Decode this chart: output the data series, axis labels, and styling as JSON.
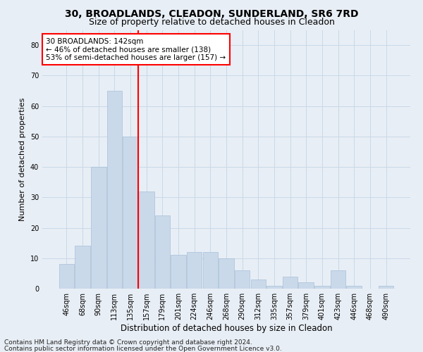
{
  "title1": "30, BROADLANDS, CLEADON, SUNDERLAND, SR6 7RD",
  "title2": "Size of property relative to detached houses in Cleadon",
  "xlabel": "Distribution of detached houses by size in Cleadon",
  "ylabel": "Number of detached properties",
  "footer1": "Contains HM Land Registry data © Crown copyright and database right 2024.",
  "footer2": "Contains public sector information licensed under the Open Government Licence v3.0.",
  "bar_color": "#c9d9ea",
  "bar_edgecolor": "#a8c0d8",
  "bar_linewidth": 0.5,
  "grid_color": "#c8d8e8",
  "annotation_text": "30 BROADLANDS: 142sqm\n← 46% of detached houses are smaller (138)\n53% of semi-detached houses are larger (157) →",
  "annotation_box_color": "white",
  "annotation_box_edgecolor": "red",
  "vline_color": "red",
  "vline_x_index": 4,
  "categories": [
    "46sqm",
    "68sqm",
    "90sqm",
    "113sqm",
    "135sqm",
    "157sqm",
    "179sqm",
    "201sqm",
    "224sqm",
    "246sqm",
    "268sqm",
    "290sqm",
    "312sqm",
    "335sqm",
    "357sqm",
    "379sqm",
    "401sqm",
    "423sqm",
    "446sqm",
    "468sqm",
    "490sqm"
  ],
  "values": [
    8,
    14,
    40,
    65,
    50,
    32,
    24,
    11,
    12,
    12,
    10,
    6,
    3,
    1,
    4,
    2,
    1,
    6,
    1,
    0,
    1
  ],
  "ylim": [
    0,
    85
  ],
  "yticks": [
    0,
    10,
    20,
    30,
    40,
    50,
    60,
    70,
    80
  ],
  "background_color": "#e8eef5",
  "plot_background": "#e8eef5",
  "title1_fontsize": 10,
  "title2_fontsize": 9,
  "xlabel_fontsize": 8.5,
  "ylabel_fontsize": 8,
  "tick_fontsize": 7,
  "footer_fontsize": 6.5,
  "annotation_fontsize": 7.5
}
